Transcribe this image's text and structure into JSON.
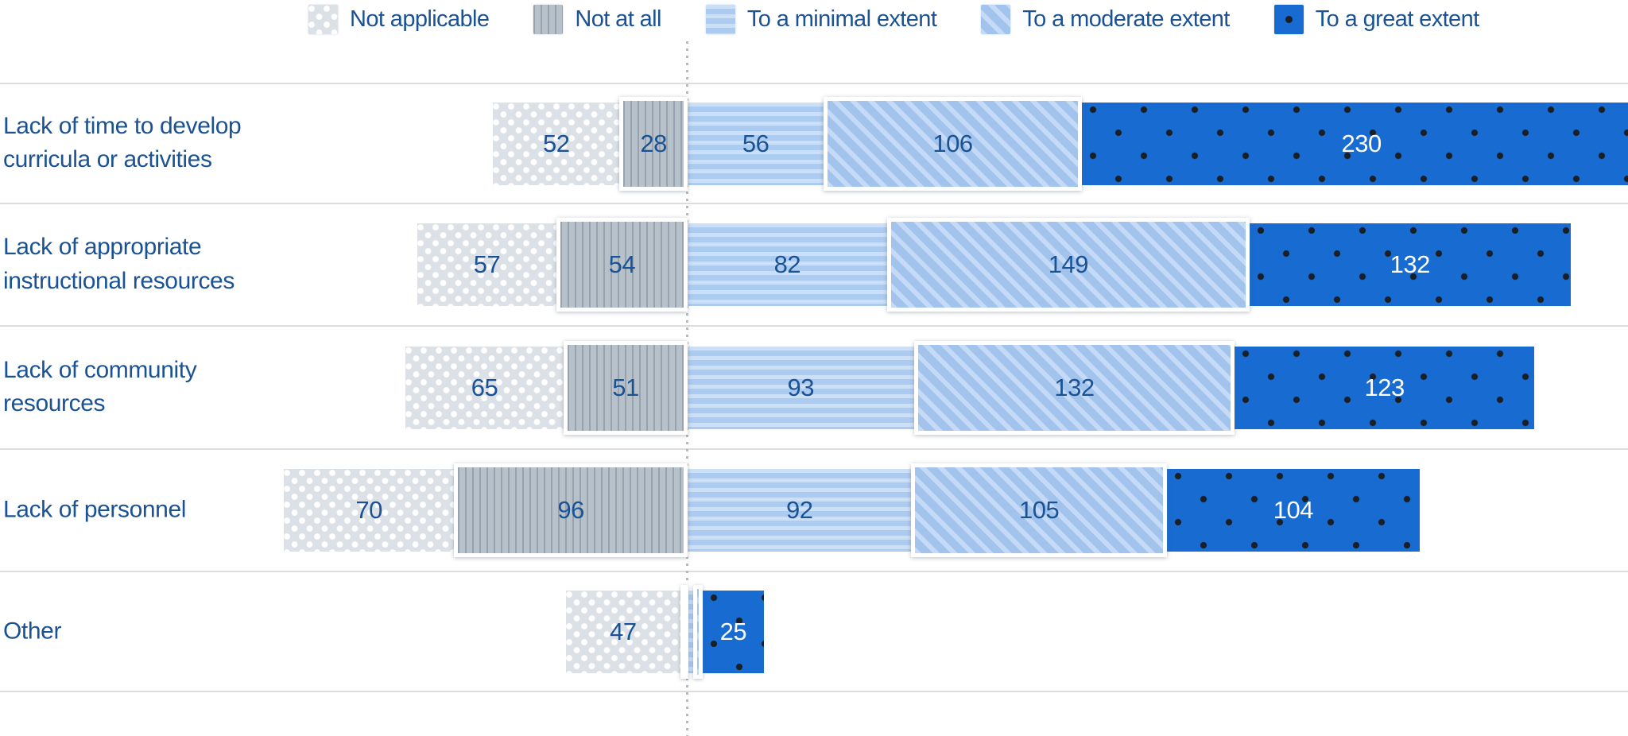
{
  "legend": {
    "items": [
      {
        "label": "Not applicable",
        "pattern": "white-dots-on-gray"
      },
      {
        "label": "Not at all",
        "pattern": "gray-vertical-stripes"
      },
      {
        "label": "To a minimal extent",
        "pattern": "blue-horizontal-stripes"
      },
      {
        "label": "To a moderate extent",
        "pattern": "blue-diagonal-stripes"
      },
      {
        "label": "To a great extent",
        "pattern": "solid-blue-black-dots"
      }
    ]
  },
  "chart_data": {
    "type": "bar",
    "variant": "diverging-stacked-horizontal",
    "title": "",
    "categories": [
      "Lack of time to develop curricula or activities",
      "Lack of appropriate instructional resources",
      "Lack of community resources",
      "Lack of personnel",
      "Other"
    ],
    "series": [
      {
        "name": "Not applicable",
        "pattern": "white-dots-on-gray",
        "side": "left",
        "values": [
          52,
          57,
          65,
          70,
          47
        ]
      },
      {
        "name": "Not at all",
        "pattern": "gray-vertical-stripes",
        "side": "left",
        "values": [
          28,
          54,
          51,
          96,
          3
        ]
      },
      {
        "name": "To a minimal extent",
        "pattern": "blue-horizontal-stripes",
        "side": "right",
        "values": [
          56,
          82,
          93,
          92,
          2
        ]
      },
      {
        "name": "To a moderate extent",
        "pattern": "blue-diagonal-stripes",
        "side": "right",
        "values": [
          106,
          149,
          132,
          105,
          4
        ]
      },
      {
        "name": "To a great extent",
        "pattern": "solid-blue-black-dots",
        "side": "right",
        "values": [
          230,
          132,
          123,
          104,
          25
        ]
      }
    ],
    "divider": "dotted vertical line between 'Not at all' and 'To a minimal extent'",
    "legend_position": "top",
    "grid": "light horizontal separator line above and below each category row",
    "value_labels": "printed on each segment; omitted on very small segments",
    "note_clipping": "first row's 'To a great extent' (230) segment runs off the right edge of the image"
  },
  "colors": {
    "text_navy": "#1a5294",
    "solid_blue": "#186bd1",
    "pattern_gray_bg": "#b7c1ca",
    "not_applicable_bg": "#dce1e7",
    "minimal_blue": "#accbf0",
    "moderate_blue": "#a2c4ec",
    "separator_gray": "#dcdcdc",
    "value_on_dark": "#ffffff"
  }
}
